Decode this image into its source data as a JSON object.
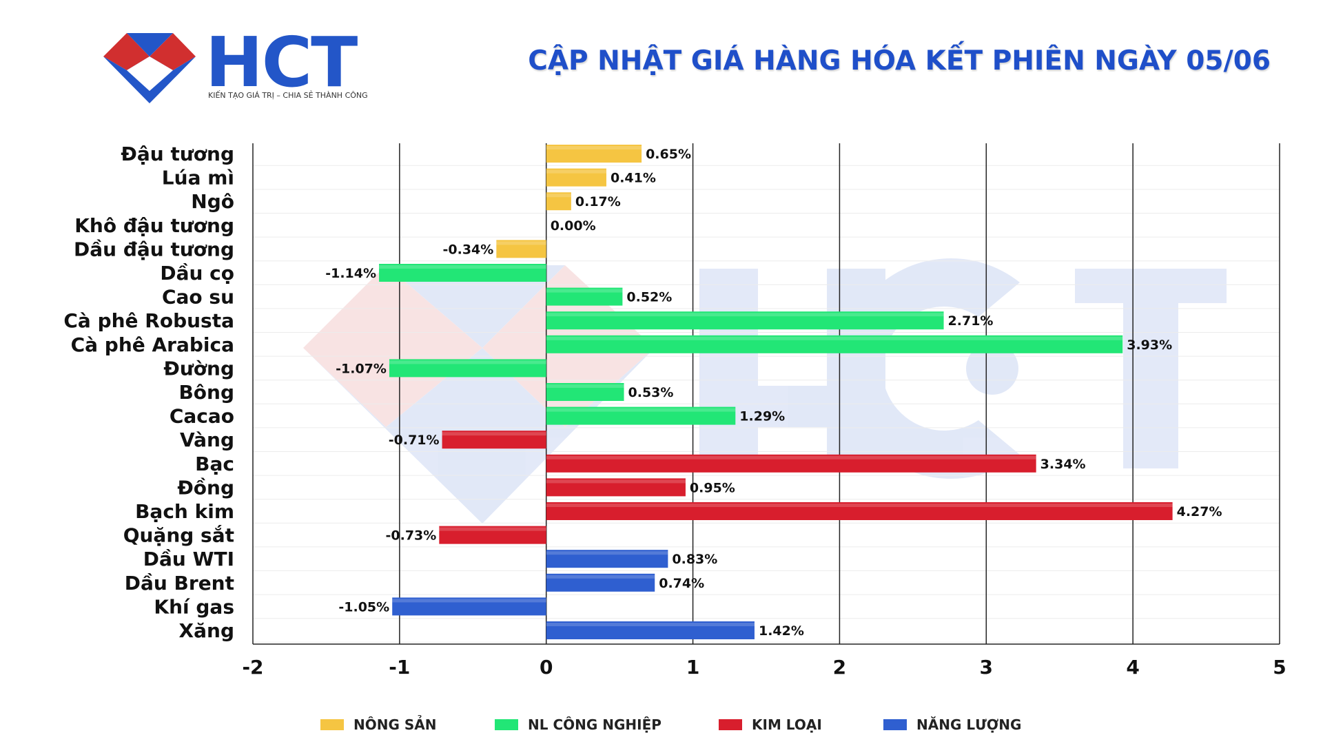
{
  "header": {
    "brand": "HCT",
    "tagline": "KIẾN TẠO GIÁ TRỊ – CHIA SẺ THÀNH CÔNG",
    "title": "CẬP NHẬT GIÁ HÀNG HÓA KẾT PHIÊN NGÀY 05/06"
  },
  "colors": {
    "nong_san": "#f5c542",
    "nl_cong_nghiep": "#22e676",
    "kim_loai": "#d81e2d",
    "nang_luong": "#2f5fd0",
    "title": "#1f4fc9",
    "logo_red": "#d12f2f",
    "logo_blue": "#2356c8"
  },
  "legend": [
    {
      "key": "nong_san",
      "label": "NÔNG SẢN"
    },
    {
      "key": "nl_cong_nghiep",
      "label": "NL CÔNG NGHIỆP"
    },
    {
      "key": "kim_loai",
      "label": "KIM LOẠI"
    },
    {
      "key": "nang_luong",
      "label": "NĂNG LƯỢNG"
    }
  ],
  "chart_data": {
    "type": "bar",
    "orientation": "horizontal",
    "title": "CẬP NHẬT GIÁ HÀNG HÓA KẾT PHIÊN NGÀY 05/06",
    "xlabel": "",
    "ylabel": "",
    "xlim": [
      -2,
      5
    ],
    "xticks": [
      "-2",
      "-1",
      "0",
      "1",
      "2",
      "3",
      "4",
      "5"
    ],
    "grid": true,
    "legend_position": "bottom",
    "categories": [
      "Đậu tương",
      "Lúa mì",
      "Ngô",
      "Khô đậu tương",
      "Dầu đậu tương",
      "Dầu cọ",
      "Cao su",
      "Cà phê Robusta",
      "Cà phê Arabica",
      "Đường",
      "Bông",
      "Cacao",
      "Vàng",
      "Bạc",
      "Đồng",
      "Bạch kim",
      "Quặng sắt",
      "Dầu WTI",
      "Dầu Brent",
      "Khí gas",
      "Xăng"
    ],
    "values": [
      0.65,
      0.41,
      0.17,
      0.0,
      -0.34,
      -1.14,
      0.52,
      2.71,
      3.93,
      -1.07,
      0.53,
      1.29,
      -0.71,
      3.34,
      0.95,
      4.27,
      -0.73,
      0.83,
      0.74,
      -1.05,
      1.42
    ],
    "labels": [
      "0.65%",
      "0.41%",
      "0.17%",
      "0.00%",
      "-0.34%",
      "-1.14%",
      "0.52%",
      "2.71%",
      "3.93%",
      "-1.07%",
      "0.53%",
      "1.29%",
      "-0.71%",
      "3.34%",
      "0.95%",
      "4.27%",
      "-0.73%",
      "0.83%",
      "0.74%",
      "-1.05%",
      "1.42%"
    ],
    "groups": [
      "nong_san",
      "nong_san",
      "nong_san",
      "nong_san",
      "nong_san",
      "nl_cong_nghiep",
      "nl_cong_nghiep",
      "nl_cong_nghiep",
      "nl_cong_nghiep",
      "nl_cong_nghiep",
      "nl_cong_nghiep",
      "nl_cong_nghiep",
      "kim_loai",
      "kim_loai",
      "kim_loai",
      "kim_loai",
      "kim_loai",
      "nang_luong",
      "nang_luong",
      "nang_luong",
      "nang_luong"
    ]
  }
}
